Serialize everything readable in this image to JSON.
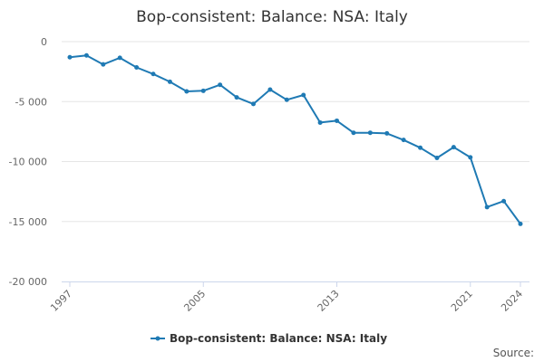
{
  "chart_data": {
    "type": "line",
    "title": "Bop-consistent: Balance: NSA: Italy",
    "xlabel": "",
    "ylabel": "",
    "x": [
      1997,
      1998,
      1999,
      2000,
      2001,
      2002,
      2003,
      2004,
      2005,
      2006,
      2007,
      2008,
      2009,
      2010,
      2011,
      2012,
      2013,
      2014,
      2015,
      2016,
      2017,
      2018,
      2019,
      2020,
      2021,
      2022,
      2023,
      2024
    ],
    "series": [
      {
        "name": "Bop-consistent: Balance: NSA: Italy",
        "color": "#1f7ab4",
        "values": [
          -1300,
          -1150,
          -1900,
          -1350,
          -2150,
          -2700,
          -3350,
          -4150,
          -4100,
          -3600,
          -4650,
          -5200,
          -4000,
          -4850,
          -4450,
          -6750,
          -6600,
          -7600,
          -7600,
          -7650,
          -8200,
          -8850,
          -9700,
          -8800,
          -9650,
          -13800,
          -13300,
          -15200
        ]
      }
    ],
    "xticks": [
      "1997",
      "2005",
      "2013",
      "2021",
      "2024"
    ],
    "xtick_values": [
      1997,
      2005,
      2013,
      2021,
      2024
    ],
    "yticks": [
      "0",
      "-5 000",
      "-10 000",
      "-15 000",
      "-20 000"
    ],
    "ytick_values": [
      0,
      -5000,
      -10000,
      -15000,
      -20000
    ],
    "xlim": [
      1997,
      2024
    ],
    "ylim": [
      -20000,
      0
    ],
    "grid": true,
    "legend": "bottom-center"
  },
  "source_label": "Source:"
}
